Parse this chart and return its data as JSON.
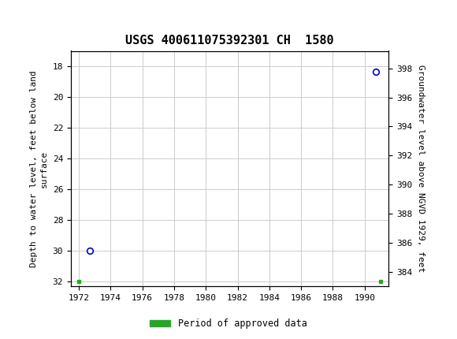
{
  "title": "USGS 400611075392301 CH  1580",
  "header_color": "#1a6e3c",
  "left_ylabel": "Depth to water level, feet below land\nsurface",
  "right_ylabel": "Groundwater level above NGVD 1929, feet",
  "xlim": [
    1971.5,
    1991.5
  ],
  "ylim_left": [
    32.3,
    17.0
  ],
  "ylim_right": [
    383.0,
    399.2
  ],
  "xticks": [
    1972,
    1974,
    1976,
    1978,
    1980,
    1982,
    1984,
    1986,
    1988,
    1990
  ],
  "yticks_left": [
    18,
    20,
    22,
    24,
    26,
    28,
    30,
    32
  ],
  "yticks_right": [
    384,
    386,
    388,
    390,
    392,
    394,
    396,
    398
  ],
  "data_points": [
    {
      "x": 1972.7,
      "y_left": 30.0,
      "color": "#0000cc"
    },
    {
      "x": 1990.7,
      "y_left": 18.35,
      "color": "#0000cc"
    }
  ],
  "green_squares": [
    {
      "x": 1972.0,
      "y_left": 32.0
    },
    {
      "x": 1991.0,
      "y_left": 32.0
    }
  ],
  "legend_label": "Period of approved data",
  "legend_color": "#2aa52a",
  "grid_color": "#cccccc",
  "background_color": "#ffffff",
  "title_fontsize": 11,
  "axis_fontsize": 8,
  "tick_fontsize": 8
}
